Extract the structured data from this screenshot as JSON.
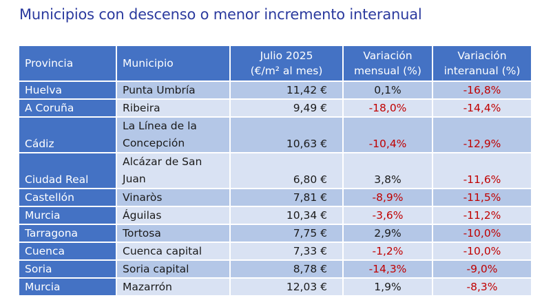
{
  "title": "Municipios con descenso o menor incremento interanual",
  "table": {
    "headers": {
      "provincia": "Provincia",
      "municipio": "Municipio",
      "precio_line1": "Julio 2025",
      "precio_line2": "(€/m² al mes)",
      "mensual_line1": "Variación",
      "mensual_line2": "mensual (%)",
      "interanual_line1": "Variación",
      "interanual_line2": "interanual (%)"
    },
    "rows": [
      {
        "provincia": "Huelva",
        "municipio": "Punta Umbría",
        "precio": "11,42 €",
        "mensual": "0,1%",
        "interanual": "-16,8%"
      },
      {
        "provincia": "A Coruña",
        "municipio": "Ribeira",
        "precio": "9,49 €",
        "mensual": "-18,0%",
        "interanual": "-14,4%"
      },
      {
        "provincia": "Cádiz",
        "municipio": "La Línea de la Concepción",
        "precio": "10,63 €",
        "mensual": "-10,4%",
        "interanual": "-12,9%"
      },
      {
        "provincia": "Ciudad Real",
        "municipio": "Alcázar de San Juan",
        "precio": "6,80 €",
        "mensual": "3,8%",
        "interanual": "-11,6%"
      },
      {
        "provincia": "Castellón",
        "municipio": "Vinaròs",
        "precio": "7,81 €",
        "mensual": "-8,9%",
        "interanual": "-11,5%"
      },
      {
        "provincia": "Murcia",
        "municipio": "Águilas",
        "precio": "10,34 €",
        "mensual": "-3,6%",
        "interanual": "-11,2%"
      },
      {
        "provincia": "Tarragona",
        "municipio": "Tortosa",
        "precio": "7,75 €",
        "mensual": "2,9%",
        "interanual": "-10,0%"
      },
      {
        "provincia": "Cuenca",
        "municipio": "Cuenca capital",
        "precio": "7,33 €",
        "mensual": "-1,2%",
        "interanual": "-10,0%"
      },
      {
        "provincia": "Soria",
        "municipio": "Soria capital",
        "precio": "8,78 €",
        "mensual": "-14,3%",
        "interanual": "-9,0%"
      },
      {
        "provincia": "Murcia",
        "municipio": "Mazarrón",
        "precio": "12,03 €",
        "mensual": "1,9%",
        "interanual": "-8,3%"
      }
    ]
  },
  "colors": {
    "title": "#2b3a9e",
    "header_bg": "#4472c4",
    "row_dark": "#b4c7e7",
    "row_light": "#d9e2f3",
    "negative": "#c00000"
  }
}
